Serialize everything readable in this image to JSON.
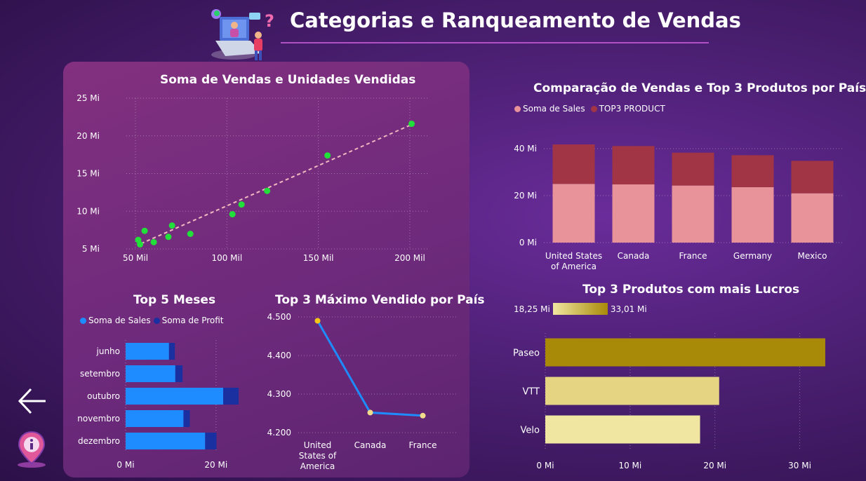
{
  "header": {
    "title": "Categorias e Ranqueamento de Vendas"
  },
  "nav": {
    "back_icon": "arrow-left-icon",
    "info_icon": "info-pin-icon"
  },
  "chart_data": [
    {
      "id": "scatter",
      "type": "scatter",
      "title": "Soma de Vendas e Unidades Vendidas",
      "x_ticks": [
        "50 Mil",
        "100 Mil",
        "150 Mil",
        "200 Mil"
      ],
      "x_tick_values": [
        50000,
        100000,
        150000,
        200000
      ],
      "y_ticks": [
        "5 Mi",
        "10 Mi",
        "15 Mi",
        "20 Mi",
        "25 Mi"
      ],
      "y_tick_values": [
        5,
        10,
        15,
        20,
        25
      ],
      "xlim": [
        45000,
        210000
      ],
      "ylim": [
        5,
        25
      ],
      "points": [
        [
          51500,
          6.2
        ],
        [
          52500,
          5.6
        ],
        [
          55000,
          7.4
        ],
        [
          60000,
          5.9
        ],
        [
          68000,
          6.6
        ],
        [
          70000,
          8.1
        ],
        [
          80000,
          7.0
        ],
        [
          103000,
          9.6
        ],
        [
          108000,
          10.9
        ],
        [
          122000,
          12.7
        ],
        [
          155000,
          17.4
        ],
        [
          201000,
          21.6
        ]
      ],
      "trendline": [
        [
          53000,
          5.7
        ],
        [
          201000,
          21.5
        ]
      ],
      "point_color": "#22e03a",
      "trend_color": "#f0b8c0"
    },
    {
      "id": "stacked",
      "type": "bar",
      "title": "Comparação de Vendas e Top 3 Produtos por País",
      "legend": [
        "Soma de  Sales",
        "TOP3 PRODUCT"
      ],
      "colors": [
        "#e8929a",
        "#a13545"
      ],
      "categories": [
        "United States of America",
        "Canada",
        "France",
        "Germany",
        "Mexico"
      ],
      "series": [
        {
          "name": "Soma de  Sales",
          "values": [
            25.0,
            24.8,
            24.3,
            23.6,
            21.0
          ]
        },
        {
          "name": "TOP3 PRODUCT",
          "values": [
            16.8,
            16.3,
            14.0,
            13.6,
            13.8
          ]
        }
      ],
      "y_ticks": [
        "0 Mi",
        "20 Mi",
        "40 Mi"
      ],
      "y_tick_values": [
        0,
        20,
        40
      ],
      "ylim": [
        0,
        40
      ]
    },
    {
      "id": "months",
      "type": "bar",
      "title": "Top 5 Meses",
      "legend": [
        "Soma de  Sales",
        "Soma de Profit"
      ],
      "colors": [
        "#1e8cff",
        "#1a2fa0"
      ],
      "categories": [
        "junho",
        "setembro",
        "outubro",
        "novembro",
        "dezembro"
      ],
      "series": [
        {
          "name": "Soma de  Sales",
          "values": [
            9.6,
            11.0,
            21.6,
            12.8,
            17.6
          ]
        },
        {
          "name": "Soma de Profit",
          "values": [
            1.3,
            1.6,
            3.4,
            1.4,
            2.5
          ]
        }
      ],
      "x_ticks": [
        "0 Mi",
        "20 Mi"
      ],
      "x_tick_values": [
        0,
        20
      ],
      "xlim": [
        0,
        25
      ]
    },
    {
      "id": "line",
      "type": "line",
      "title": "Top 3 Máximo Vendido por País",
      "categories": [
        "United States of America",
        "Canada",
        "France"
      ],
      "category_labels": [
        [
          "United",
          "States of",
          "America"
        ],
        [
          "Canada"
        ],
        [
          "France"
        ]
      ],
      "values": [
        4490,
        4252,
        4244
      ],
      "y_ticks": [
        "4.200",
        "4.300",
        "4.400",
        "4.500"
      ],
      "y_tick_values": [
        4200,
        4300,
        4400,
        4500
      ],
      "ylim": [
        4200,
        4500
      ],
      "line_color": "#1e8cff",
      "point_color": "#f2dc8c",
      "first_point_color": "#f5c518"
    },
    {
      "id": "profit",
      "type": "bar",
      "title": "Top 3 Produtos com mais Lucros",
      "legend_min": "18,25 Mi",
      "legend_max": "33,01 Mi",
      "categories": [
        "Paseo",
        "VTT",
        "Velo"
      ],
      "values": [
        33.01,
        20.5,
        18.25
      ],
      "colors": [
        "#a88a08",
        "#e5d583",
        "#f0e6a1"
      ],
      "x_ticks": [
        "0 Mi",
        "10 Mi",
        "20 Mi",
        "30 Mi"
      ],
      "x_tick_values": [
        0,
        10,
        20,
        30
      ],
      "xlim": [
        0,
        35
      ]
    }
  ]
}
